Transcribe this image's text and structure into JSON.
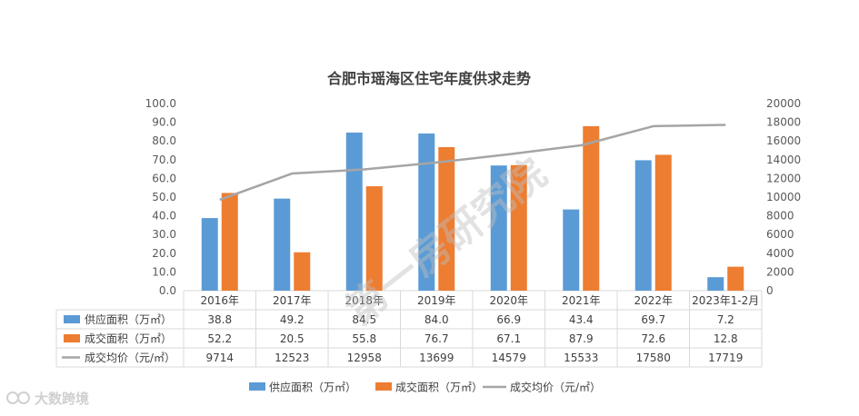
{
  "chart_data": {
    "type": "bar",
    "title": "合肥市瑶海区住宅年度供求走势",
    "categories": [
      "2016年",
      "2017年",
      "2018年",
      "2019年",
      "2020年",
      "2021年",
      "2022年",
      "2023年1-2月"
    ],
    "ylim": [
      0,
      100
    ],
    "y2lim": [
      0,
      20000
    ],
    "y_ticks": [
      "0.0",
      "10.0",
      "20.0",
      "30.0",
      "40.0",
      "50.0",
      "60.0",
      "70.0",
      "80.0",
      "90.0",
      "100.0"
    ],
    "y2_ticks": [
      "0",
      "2000",
      "4000",
      "6000",
      "8000",
      "10000",
      "12000",
      "14000",
      "16000",
      "18000",
      "20000"
    ],
    "grid": false,
    "legend_position": "bottom",
    "data_table": true,
    "series": [
      {
        "name": "供应面积（万㎡）",
        "type": "bar",
        "axis": "left",
        "color": "#5B9BD5",
        "values": [
          38.8,
          49.2,
          84.5,
          84.0,
          66.9,
          43.4,
          69.7,
          7.2
        ],
        "labels": [
          "38.8",
          "49.2",
          "84.5",
          "84.0",
          "66.9",
          "43.4",
          "69.7",
          "7.2"
        ]
      },
      {
        "name": "成交面积（万㎡）",
        "type": "bar",
        "axis": "left",
        "color": "#ED7D31",
        "values": [
          52.2,
          20.5,
          55.8,
          76.7,
          67.1,
          87.9,
          72.6,
          12.8
        ],
        "labels": [
          "52.2",
          "20.5",
          "55.8",
          "76.7",
          "67.1",
          "87.9",
          "72.6",
          "12.8"
        ]
      },
      {
        "name": "成交均价（元/㎡）",
        "type": "line",
        "axis": "right",
        "color": "#A5A5A5",
        "values": [
          9714,
          12523,
          12958,
          13699,
          14579,
          15533,
          17580,
          17719
        ],
        "labels": [
          "9714",
          "12523",
          "12958",
          "13699",
          "14579",
          "15533",
          "17580",
          "17719"
        ]
      }
    ]
  },
  "watermark": {
    "text": "第一房研究院"
  },
  "logo": {
    "text": "大数跨境",
    "icon": "brand-logo-icon"
  }
}
